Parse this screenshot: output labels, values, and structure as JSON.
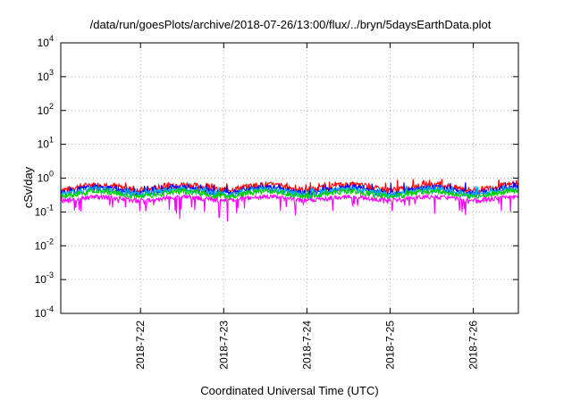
{
  "chart_data": {
    "type": "line",
    "title": "/data/run/goesPlots/archive/2018-07-26/13:00/flux/../bryn/5daysEarthData.plot",
    "xlabel": "Coordinated Universal Time (UTC)",
    "ylabel": "cSv/day",
    "yscale": "log",
    "ylim": [
      0.0001,
      10000
    ],
    "xlim": [
      "2018-07-21 01:00",
      "2018-07-26 13:00"
    ],
    "grid": true,
    "y_ticks": [
      {
        "mantissa": "10",
        "exponent": "-4"
      },
      {
        "mantissa": "10",
        "exponent": "-3"
      },
      {
        "mantissa": "10",
        "exponent": "-2"
      },
      {
        "mantissa": "10",
        "exponent": "-1"
      },
      {
        "mantissa": "10",
        "exponent": "0"
      },
      {
        "mantissa": "10",
        "exponent": "1"
      },
      {
        "mantissa": "10",
        "exponent": "2"
      },
      {
        "mantissa": "10",
        "exponent": "3"
      },
      {
        "mantissa": "10",
        "exponent": "4"
      }
    ],
    "x_ticks": [
      "2018-7-22",
      "2018-7-23",
      "2018-7-24",
      "2018-7-25",
      "2018-7-26"
    ],
    "series": [
      {
        "color": "#ff0000",
        "typical": 0.55,
        "day_peaks": [
          0.7,
          0.75,
          0.72,
          0.8,
          0.95
        ]
      },
      {
        "color": "#0000ff",
        "typical": 0.45,
        "day_peaks": [
          0.6,
          0.65,
          0.62,
          0.7,
          0.8
        ]
      },
      {
        "color": "#00aaff",
        "typical": 0.4,
        "day_peaks": [
          0.5,
          0.55,
          0.52,
          0.55,
          0.6
        ]
      },
      {
        "color": "#00cc00",
        "typical": 0.35,
        "day_peaks": [
          0.42,
          0.45,
          0.43,
          0.45,
          0.48
        ]
      },
      {
        "color": "#ff00ff",
        "typical": 0.25,
        "day_dips": [
          0.1,
          0.06,
          0.05,
          0.08,
          0.07
        ]
      }
    ]
  }
}
